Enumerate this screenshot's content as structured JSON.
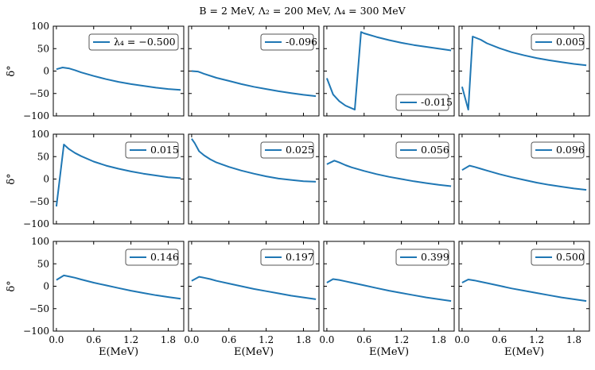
{
  "title": "B = 2 MeV, Λ₂ = 200 MeV, Λ₄ = 300 MeV",
  "xlabel": "E(MeV)",
  "ylabel": "δ°",
  "line_color": "#1f77b4",
  "chart_data": [
    {
      "type": "line",
      "legend": "λ₄ = −0.500",
      "legend_loc": "top-right",
      "xlim": [
        -0.05,
        2.05
      ],
      "ylim": [
        -100,
        100
      ],
      "x": [
        0,
        0.1,
        0.2,
        0.3,
        0.4,
        0.6,
        0.8,
        1.0,
        1.2,
        1.4,
        1.6,
        1.8,
        2.0
      ],
      "y": [
        4,
        8,
        6,
        2,
        -3,
        -11,
        -18,
        -24,
        -29,
        -33,
        -37,
        -40,
        -42
      ]
    },
    {
      "type": "line",
      "legend": "-0.096",
      "legend_loc": "top-right",
      "xlim": [
        -0.05,
        2.05
      ],
      "ylim": [
        -100,
        100
      ],
      "x": [
        0,
        0.1,
        0.2,
        0.4,
        0.6,
        0.8,
        1.0,
        1.2,
        1.4,
        1.6,
        1.8,
        2.0
      ],
      "y": [
        0,
        -1,
        -6,
        -15,
        -22,
        -29,
        -35,
        -40,
        -45,
        -49,
        -53,
        -56
      ]
    },
    {
      "type": "line",
      "legend": "-0.015",
      "legend_loc": "bottom-right",
      "xlim": [
        -0.05,
        2.05
      ],
      "ylim": [
        -100,
        100
      ],
      "x": [
        0,
        0.1,
        0.2,
        0.3,
        0.45,
        0.55,
        0.6,
        0.8,
        1.0,
        1.2,
        1.4,
        1.6,
        1.8,
        2.0
      ],
      "y": [
        -16,
        -52,
        -67,
        -77,
        -86,
        87,
        84,
        76,
        69,
        63,
        58,
        54,
        50,
        46
      ]
    },
    {
      "type": "line",
      "legend": "0.005",
      "legend_loc": "top-right",
      "xlim": [
        -0.05,
        2.05
      ],
      "ylim": [
        -100,
        100
      ],
      "x": [
        0,
        0.1,
        0.17,
        0.3,
        0.4,
        0.6,
        0.8,
        1.0,
        1.2,
        1.4,
        1.6,
        1.8,
        2.0
      ],
      "y": [
        -35,
        -86,
        77,
        70,
        62,
        51,
        42,
        35,
        29,
        24,
        20,
        16,
        13
      ]
    },
    {
      "type": "line",
      "legend": "0.015",
      "legend_loc": "top-right",
      "xlim": [
        -0.05,
        2.05
      ],
      "ylim": [
        -100,
        100
      ],
      "x": [
        0,
        0.12,
        0.2,
        0.3,
        0.4,
        0.6,
        0.8,
        1.0,
        1.2,
        1.4,
        1.6,
        1.8,
        2.0
      ],
      "y": [
        -61,
        77,
        67,
        58,
        51,
        39,
        30,
        23,
        17,
        12,
        8,
        4,
        2
      ]
    },
    {
      "type": "line",
      "legend": "0.025",
      "legend_loc": "top-right",
      "xlim": [
        -0.05,
        2.05
      ],
      "ylim": [
        -100,
        100
      ],
      "x": [
        0,
        0.05,
        0.12,
        0.2,
        0.3,
        0.4,
        0.6,
        0.8,
        1.0,
        1.2,
        1.4,
        1.6,
        1.8,
        2.0
      ],
      "y": [
        90,
        80,
        62,
        53,
        44,
        37,
        27,
        19,
        12,
        6,
        1,
        -2,
        -5,
        -6
      ]
    },
    {
      "type": "line",
      "legend": "0.056",
      "legend_loc": "top-right",
      "xlim": [
        -0.05,
        2.05
      ],
      "ylim": [
        -100,
        100
      ],
      "x": [
        0,
        0.12,
        0.2,
        0.3,
        0.4,
        0.6,
        0.8,
        1.0,
        1.2,
        1.4,
        1.6,
        1.8,
        2.0
      ],
      "y": [
        33,
        41,
        37,
        31,
        26,
        18,
        11,
        5,
        0,
        -5,
        -9,
        -13,
        -16
      ]
    },
    {
      "type": "line",
      "legend": "0.096",
      "legend_loc": "top-right",
      "xlim": [
        -0.05,
        2.05
      ],
      "ylim": [
        -100,
        100
      ],
      "x": [
        0,
        0.12,
        0.2,
        0.3,
        0.4,
        0.6,
        0.8,
        1.0,
        1.2,
        1.4,
        1.6,
        1.8,
        2.0
      ],
      "y": [
        20,
        30,
        27,
        23,
        19,
        11,
        4,
        -2,
        -8,
        -13,
        -17,
        -21,
        -24
      ]
    },
    {
      "type": "line",
      "legend": "0.146",
      "legend_loc": "top-right",
      "xlim": [
        -0.05,
        2.05
      ],
      "ylim": [
        -100,
        100
      ],
      "x": [
        0,
        0.12,
        0.2,
        0.3,
        0.4,
        0.6,
        0.8,
        1.0,
        1.2,
        1.4,
        1.6,
        1.8,
        2.0
      ],
      "y": [
        14,
        24,
        22,
        19,
        15,
        8,
        2,
        -4,
        -10,
        -15,
        -20,
        -24,
        -28
      ]
    },
    {
      "type": "line",
      "legend": "0.197",
      "legend_loc": "top-right",
      "xlim": [
        -0.05,
        2.05
      ],
      "ylim": [
        -100,
        100
      ],
      "x": [
        0,
        0.12,
        0.2,
        0.3,
        0.4,
        0.6,
        0.8,
        1.0,
        1.2,
        1.4,
        1.6,
        1.8,
        2.0
      ],
      "y": [
        12,
        21,
        19,
        16,
        12,
        6,
        0,
        -6,
        -11,
        -16,
        -21,
        -25,
        -29
      ]
    },
    {
      "type": "line",
      "legend": "0.399",
      "legend_loc": "top-right",
      "xlim": [
        -0.05,
        2.05
      ],
      "ylim": [
        -100,
        100
      ],
      "x": [
        0,
        0.1,
        0.2,
        0.3,
        0.4,
        0.6,
        0.8,
        1.0,
        1.2,
        1.4,
        1.6,
        1.8,
        2.0
      ],
      "y": [
        8,
        16,
        14,
        11,
        8,
        2,
        -4,
        -10,
        -15,
        -20,
        -25,
        -29,
        -33
      ]
    },
    {
      "type": "line",
      "legend": "0.500",
      "legend_loc": "top-right",
      "xlim": [
        -0.05,
        2.05
      ],
      "ylim": [
        -100,
        100
      ],
      "x": [
        0,
        0.1,
        0.2,
        0.3,
        0.4,
        0.6,
        0.8,
        1.0,
        1.2,
        1.4,
        1.6,
        1.8,
        2.0
      ],
      "y": [
        8,
        15,
        13,
        10,
        7,
        1,
        -5,
        -10,
        -15,
        -20,
        -25,
        -29,
        -33
      ]
    }
  ],
  "y_ticks": [
    "100",
    "50",
    "0",
    "−50",
    "−100"
  ],
  "x_ticks": [
    "0.0",
    "0.6",
    "1.2",
    "1.8"
  ]
}
